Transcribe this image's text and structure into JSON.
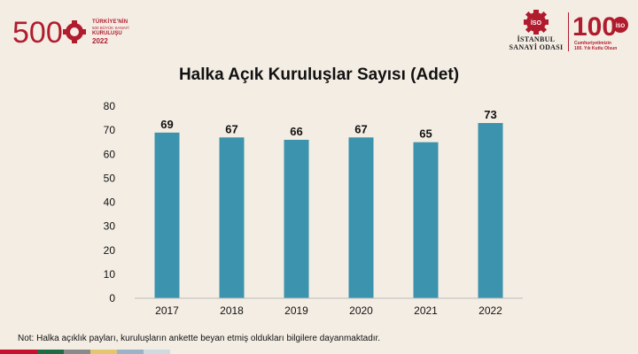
{
  "header": {
    "left_logo": {
      "number": "500",
      "line1": "TÜRKİYE'NİN",
      "line2": "500 BÜYÜK SANAYİ",
      "line3": "KURULUŞU",
      "year": "2022"
    },
    "iso_logo": {
      "badge": "İSO",
      "name_line1": "İSTANBUL",
      "name_line2": "SANAYİ ODASI"
    },
    "centennial_logo": {
      "number": "100",
      "badge": "İSO",
      "caption_line1": "Cumhuriyetimizin",
      "caption_line2": "100. Yılı Kutlu Olsun"
    }
  },
  "colors": {
    "bar": "#3c93ad",
    "accent": "#b01c2e",
    "background": "#f4ede4"
  },
  "chart_data": {
    "type": "bar",
    "title": "Halka Açık Kuruluşlar Sayısı (Adet)",
    "categories": [
      "2017",
      "2018",
      "2019",
      "2020",
      "2021",
      "2022"
    ],
    "values": [
      69,
      67,
      66,
      67,
      65,
      73
    ],
    "ylim": [
      0,
      80
    ],
    "yticks": [
      0,
      10,
      20,
      30,
      40,
      50,
      60,
      70,
      80
    ],
    "grid": false,
    "data_labels": true
  },
  "footnote": "Not: Halka açıklık payları, kuruluşların ankette beyan etmiş oldukları bilgilere dayanmaktadır.",
  "bottom_strip_colors": [
    "#c8102e",
    "#1f6b46",
    "#8a8a8a",
    "#e3c770",
    "#9bb3c6",
    "#cfd9e1"
  ]
}
